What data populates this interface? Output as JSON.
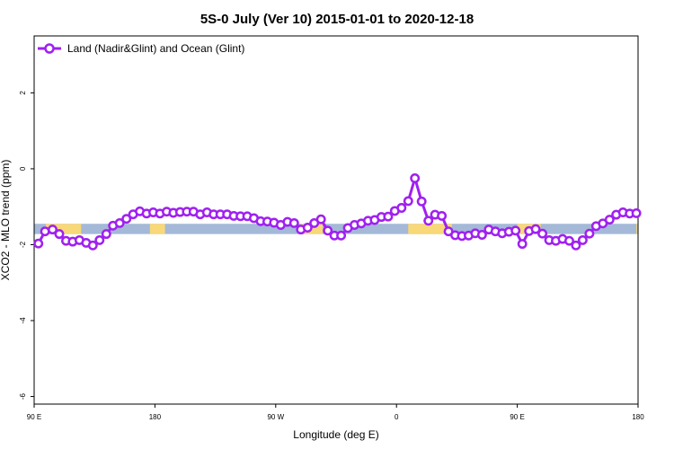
{
  "chart_data": {
    "type": "line",
    "title": "5S-0 July (Ver 10)   2015-01-01 to 2020-12-18",
    "xlabel": "Longitude (deg E)",
    "ylabel": "XCO2 - MLO trend (ppm)",
    "xlim": [
      90,
      450
    ],
    "ylim": [
      -6.2,
      3.5
    ],
    "x_ticks": [
      {
        "value": 90,
        "label": "90 E"
      },
      {
        "value": 162,
        "label": "180"
      },
      {
        "value": 234,
        "label": "90 W"
      },
      {
        "value": 306,
        "label": "0"
      },
      {
        "value": 378,
        "label": "90 E"
      },
      {
        "value": 450,
        "label": "180"
      }
    ],
    "y_ticks": [
      {
        "value": 2,
        "label": "2"
      },
      {
        "value": 0,
        "label": "0"
      },
      {
        "value": -2,
        "label": "-2"
      },
      {
        "value": -4,
        "label": "-4"
      },
      {
        "value": -6,
        "label": "-6"
      }
    ],
    "background_band": {
      "y_top": -1.45,
      "y_bottom": -1.72,
      "ocean_color": "#a4b8d8",
      "land_color": "#f8d878"
    },
    "land_segments": [
      [
        97,
        118
      ],
      [
        159,
        168
      ],
      [
        249,
        262
      ],
      [
        313,
        339
      ],
      [
        378,
        392
      ],
      [
        449,
        450
      ]
    ],
    "legend": {
      "position": "top-left",
      "entries": [
        "Land (Nadir&Glint) and Ocean (Glint)"
      ]
    },
    "series": [
      {
        "name": "Land (Nadir&Glint) and Ocean (Glint)",
        "color": "#a020f0",
        "x": [
          92.5,
          96.5,
          101,
          105,
          109,
          113,
          117,
          121,
          125,
          129,
          133,
          137,
          141,
          145,
          149,
          153,
          157,
          161,
          165,
          169,
          173,
          177,
          181,
          185,
          189,
          193,
          197,
          201,
          205,
          209,
          213,
          217,
          221,
          225,
          229,
          233,
          237,
          241,
          245,
          249,
          253,
          257,
          261,
          265,
          269,
          273,
          277,
          281,
          285,
          289,
          293,
          297,
          301,
          305,
          309,
          313,
          317,
          321,
          325,
          329,
          333,
          337,
          341,
          345,
          349,
          353,
          357,
          361,
          365,
          369,
          373,
          377,
          381,
          385,
          389,
          393,
          397,
          401,
          405,
          409,
          413,
          417,
          421,
          425,
          429,
          433,
          437,
          441,
          445,
          449
        ],
        "y": [
          -1.97,
          -1.65,
          -1.6,
          -1.72,
          -1.9,
          -1.92,
          -1.88,
          -1.95,
          -2.02,
          -1.88,
          -1.72,
          -1.5,
          -1.43,
          -1.32,
          -1.2,
          -1.12,
          -1.18,
          -1.15,
          -1.18,
          -1.13,
          -1.16,
          -1.14,
          -1.13,
          -1.13,
          -1.2,
          -1.15,
          -1.2,
          -1.2,
          -1.2,
          -1.24,
          -1.25,
          -1.25,
          -1.3,
          -1.38,
          -1.39,
          -1.42,
          -1.48,
          -1.4,
          -1.43,
          -1.6,
          -1.55,
          -1.43,
          -1.33,
          -1.63,
          -1.76,
          -1.76,
          -1.56,
          -1.48,
          -1.44,
          -1.37,
          -1.35,
          -1.27,
          -1.26,
          -1.11,
          -1.03,
          -0.85,
          -0.25,
          -0.86,
          -1.37,
          -1.21,
          -1.24,
          -1.65,
          -1.75,
          -1.77,
          -1.76,
          -1.7,
          -1.74,
          -1.6,
          -1.65,
          -1.7,
          -1.66,
          -1.63,
          -1.98,
          -1.64,
          -1.59,
          -1.71,
          -1.88,
          -1.9,
          -1.85,
          -1.9,
          -2.02,
          -1.88,
          -1.71,
          -1.51,
          -1.44,
          -1.34,
          -1.21,
          -1.15,
          -1.18,
          -1.17
        ]
      }
    ]
  }
}
